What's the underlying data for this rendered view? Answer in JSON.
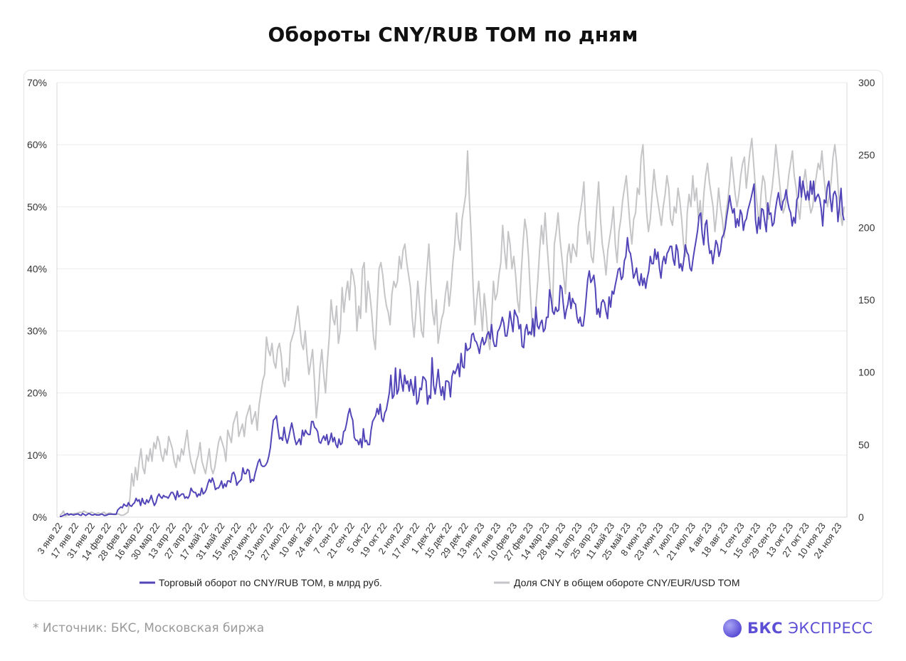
{
  "title": "Обороты CNY/RUB TOM по дням",
  "footnote": "*  Источник: БКС, Московская биржа",
  "brand": {
    "bold": "БКС",
    "rest": " ЭКСПРЕСС"
  },
  "colors": {
    "turnover": "#5245b8",
    "share": "#c5c5c8",
    "grid": "#ececf0",
    "axis": "#d8d8dc",
    "brand": "#5c4fd6"
  },
  "chart_data": {
    "type": "line",
    "x_tick_labels": [
      "3 янв 22",
      "17 янв 22",
      "31 янв 22",
      "14 фев 22",
      "28 фев 22",
      "16 мар 22",
      "30 мар 22",
      "13 апр 22",
      "27 апр 22",
      "17 май 22",
      "31 май 22",
      "15 июн 22",
      "29 июн 22",
      "13 июл 22",
      "27 июл 22",
      "10 авг 22",
      "24 авг 22",
      "7 сен 22",
      "21 сен 22",
      "5 окт 22",
      "19 окт 22",
      "2 ноя 22",
      "17 ноя 22",
      "1 дек 22",
      "15 дек 22",
      "29 дек 22",
      "13 янв 23",
      "27 янв 23",
      "10 фев 23",
      "27 фев 23",
      "14 мар 23",
      "28 мар 23",
      "11 апр 23",
      "25 апр 23",
      "11 май 23",
      "25 май 23",
      "8 июн 23",
      "23 июн 23",
      "7 июл 23",
      "21 июл 23",
      "4 авг 23",
      "18 авг 23",
      "1 сен 23",
      "15 сен 23",
      "29 сен 23",
      "13 окт 23",
      "27 окт 23",
      "10 ноя 23",
      "24 ноя 23"
    ],
    "y_left": {
      "ticks": [
        "0%",
        "10%",
        "20%",
        "30%",
        "40%",
        "50%",
        "60%",
        "70%"
      ],
      "range": [
        0,
        70
      ]
    },
    "y_right": {
      "ticks": [
        "0",
        "50",
        "100",
        "150",
        "200",
        "250",
        "300"
      ],
      "range": [
        0,
        300
      ]
    },
    "legend_position": "bottom",
    "series": [
      {
        "name": "Торговый оборот по CNY/RUB TOM, в млрд руб.",
        "axis": "right",
        "values": [
          0.5,
          0.5,
          1,
          1.5,
          2,
          2.5,
          1.5,
          2,
          1.8,
          1.5,
          1.8,
          2,
          2.2,
          1.5,
          1.2,
          2.5,
          1.8,
          1.2,
          1.8,
          2.5,
          2,
          1.5,
          1.5,
          2,
          1.5,
          1.5,
          1.5,
          2,
          2,
          1.2,
          1.2,
          1.5,
          2,
          2,
          2,
          2,
          2,
          2,
          5,
          6,
          7,
          6.5,
          9,
          8,
          7.5,
          10,
          8,
          7.5,
          9,
          10,
          13,
          11,
          12,
          8,
          13,
          10,
          9,
          12,
          10,
          12,
          15,
          11,
          8,
          10,
          14,
          16,
          14,
          13,
          15,
          14,
          14,
          13,
          15,
          17,
          17,
          15,
          12,
          18,
          14,
          15,
          16,
          16,
          13,
          14,
          13,
          15,
          20,
          18,
          17,
          17,
          14,
          16,
          15,
          20,
          16,
          17,
          19,
          23,
          26,
          24,
          27,
          24,
          19,
          20,
          20,
          22,
          25,
          20,
          23,
          21,
          25,
          25,
          24,
          30,
          31,
          28,
          22,
          24,
          25,
          26,
          34,
          30,
          30,
          33,
          32,
          24,
          26,
          25,
          30,
          34,
          38,
          40,
          36,
          35,
          35,
          36,
          38,
          42,
          48,
          58,
          67,
          68,
          70,
          61,
          54,
          55,
          53,
          62,
          55,
          51,
          55,
          60,
          65,
          60,
          54,
          50,
          52,
          54,
          50,
          60,
          56,
          60,
          58,
          57,
          57,
          66,
          66,
          62,
          61,
          59,
          52,
          51,
          54,
          56,
          53,
          57,
          50,
          53,
          58,
          52,
          55,
          50,
          48,
          54,
          50,
          51,
          59,
          60,
          65,
          71,
          75,
          70,
          67,
          55,
          53,
          53,
          50,
          54,
          48,
          61,
          52,
          53,
          50,
          50,
          60,
          66,
          68,
          70,
          75,
          71,
          78,
          68,
          66,
          72,
          74,
          80,
          86,
          98,
          82,
          84,
          103,
          85,
          88,
          102,
          93,
          87,
          98,
          92,
          94,
          87,
          95,
          89,
          84,
          97,
          78,
          80,
          89,
          88,
          97,
          96,
          94,
          78,
          84,
          82,
          110,
          91,
          85,
          93,
          102,
          91,
          84,
          90,
          81,
          94,
          94,
          93,
          83,
          97,
          101,
          99,
          102,
          106,
          97,
          113,
          104,
          103,
          120,
          115,
          116,
          117,
          126,
          127,
          122,
          121,
          118,
          113,
          120,
          124,
          119,
          121,
          126,
          128,
          123,
          133,
          122,
          118,
          118,
          128,
          130,
          133,
          138,
          134,
          125,
          125,
          132,
          142,
          135,
          128,
          143,
          140,
          138,
          130,
          133,
          118,
          117,
          129,
          133,
          126,
          128,
          126,
          137,
          125,
          145,
          132,
          130,
          134,
          136,
          128,
          130,
          138,
          138,
          157,
          151,
          142,
          140,
          145,
          142,
          143,
          160,
          158,
          147,
          137,
          143,
          147,
          155,
          144,
          151,
          148,
          147,
          138,
          134,
          138,
          132,
          132,
          140,
          152,
          164,
          170,
          162,
          164,
          167,
          158,
          140,
          144,
          138,
          148,
          150,
          148,
          142,
          137,
          152,
          145,
          156,
          154,
          160,
          165,
          171,
          172,
          164,
          166,
          177,
          180,
          193,
          184,
          182,
          175,
          165,
          168,
          172,
          163,
          160,
          168,
          160,
          165,
          158,
          165,
          170,
          180,
          175,
          175,
          185,
          178,
          183,
          172,
          165,
          176,
          180,
          175,
          182,
          184,
          187,
          187,
          178,
          174,
          188,
          184,
          172,
          175,
          170,
          178,
          188,
          183,
          181,
          172,
          170,
          178,
          185,
          191,
          198,
          208,
          210,
          196,
          188,
          202,
          205,
          190,
          182,
          184,
          175,
          183,
          191,
          188,
          180,
          184,
          193,
          195,
          199,
          207,
          214,
          222,
          215,
          210,
          213,
          200,
          206,
          201,
          212,
          209,
          198,
          204,
          206,
          212,
          216,
          220,
          225,
          230,
          205,
          196,
          207,
          199,
          213,
          212,
          204,
          197,
          217,
          209,
          210,
          201,
          203,
          212,
          219,
          224,
          216,
          212,
          218,
          220,
          226,
          218,
          213,
          210,
          201,
          207,
          203,
          219,
          221,
          235,
          221,
          232,
          225,
          219,
          225,
          219,
          232,
          223,
          232,
          218,
          221,
          223,
          220,
          213,
          201,
          219,
          217,
          228,
          232,
          220,
          211,
          223,
          225,
          221,
          204,
          215,
          227,
          209,
          205
        ]
      },
      {
        "name": "Доля CNY в общем обороте CNY/EUR/USD TOM",
        "axis": "left",
        "values": [
          0.3,
          0.5,
          1,
          0.2,
          0.3,
          0.4,
          0.6,
          0.5,
          0.6,
          0.6,
          0.7,
          0.8,
          0.7,
          1,
          0.8,
          0.7,
          0.6,
          0.8,
          0.7,
          0.5,
          0.6,
          0.7,
          0.5,
          0.7,
          0.8,
          0.5,
          0.6,
          0.7,
          0.6,
          0.4,
          0.4,
          0.5,
          0.5,
          0.3,
          0.3,
          0.4,
          0.6,
          0.8,
          3,
          7,
          5,
          8,
          6,
          9,
          11,
          8,
          7,
          10,
          9,
          11,
          9,
          12,
          11,
          13,
          12,
          10,
          9,
          11,
          10,
          13,
          12,
          11,
          9,
          8,
          10,
          9,
          11,
          10,
          12,
          14,
          11,
          9,
          8,
          7,
          9,
          10,
          12,
          9,
          8,
          7,
          9,
          11,
          8,
          7,
          8,
          10,
          12,
          13,
          12,
          11,
          9,
          14,
          13,
          12,
          15,
          16,
          17,
          13,
          14,
          15,
          13,
          16,
          17,
          18,
          15,
          16,
          17,
          14,
          18,
          20,
          22,
          23,
          29,
          27,
          26,
          28,
          25,
          24,
          27,
          28,
          26,
          22,
          21,
          24,
          22,
          28,
          29,
          30,
          32,
          34,
          31,
          28,
          27,
          30,
          26,
          23,
          25,
          27,
          22,
          16,
          19,
          24,
          27,
          23,
          20,
          25,
          29,
          35,
          32,
          31,
          34,
          28,
          30,
          37,
          33,
          36,
          38,
          35,
          40,
          39,
          37,
          30,
          34,
          32,
          40,
          41,
          33,
          38,
          36,
          33,
          29,
          27,
          34,
          40,
          41,
          39,
          36,
          34,
          33,
          31,
          36,
          38,
          37,
          38,
          42,
          40,
          43,
          44,
          41,
          39,
          37,
          32,
          29,
          33,
          38,
          34,
          30,
          29,
          36,
          40,
          44,
          38,
          33,
          31,
          35,
          28,
          30,
          32,
          33,
          36,
          38,
          34,
          37,
          41,
          44,
          49,
          45,
          43,
          48,
          50,
          52,
          59,
          51,
          45,
          37,
          31,
          35,
          38,
          34,
          30,
          36,
          33,
          29,
          27,
          32,
          38,
          35,
          36,
          39,
          41,
          47,
          43,
          40,
          46,
          44,
          40,
          42,
          39,
          35,
          33,
          39,
          44,
          48,
          46,
          42,
          36,
          31,
          29,
          34,
          38,
          43,
          47,
          44,
          49,
          44,
          40,
          36,
          33,
          44,
          46,
          49,
          45,
          42,
          39,
          36,
          42,
          44,
          41,
          44,
          43,
          42,
          47,
          49,
          51,
          54,
          47,
          44,
          46,
          42,
          41,
          45,
          50,
          54,
          48,
          44,
          42,
          39,
          43,
          45,
          47,
          50,
          44,
          41,
          46,
          48,
          51,
          53,
          55,
          51,
          47,
          44,
          48,
          49,
          53,
          52,
          58,
          60,
          54,
          49,
          46,
          48,
          52,
          56,
          53,
          51,
          49,
          47,
          50,
          52,
          55,
          53,
          48,
          47,
          50,
          49,
          53,
          51,
          48,
          44,
          42,
          49,
          52,
          50,
          55,
          51,
          53,
          48,
          51,
          47,
          52,
          55,
          57,
          54,
          52,
          50,
          46,
          49,
          53,
          50,
          48,
          45,
          49,
          51,
          54,
          58,
          55,
          52,
          50,
          52,
          55,
          57,
          58,
          53,
          56,
          59,
          61,
          57,
          53,
          50,
          47,
          52,
          55,
          54,
          50,
          48,
          51,
          53,
          56,
          60,
          57,
          54,
          51,
          49,
          50,
          52,
          55,
          57,
          59,
          55,
          53,
          50,
          48,
          52,
          54,
          56,
          53,
          51,
          49,
          50,
          53,
          55,
          57,
          56,
          59,
          55,
          52,
          50,
          52,
          54,
          58,
          60,
          57,
          52,
          49,
          47,
          50
        ]
      }
    ]
  }
}
